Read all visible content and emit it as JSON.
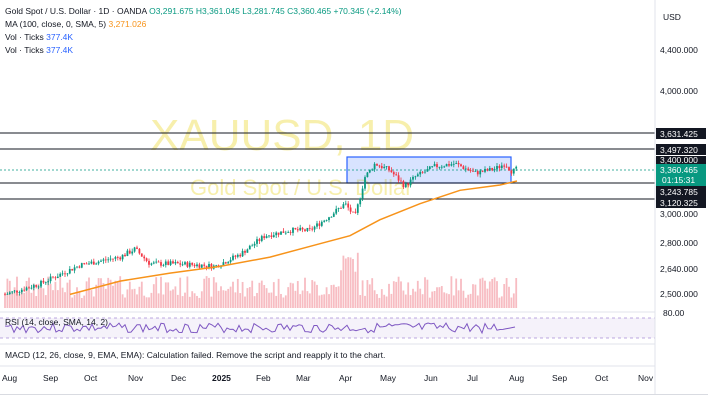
{
  "legend": {
    "symbol_line": "Gold Spot / U.S. Dollar · 1D · OANDA",
    "open": "O3,291.675",
    "high": "H3,361.045",
    "low": "L3,281.745",
    "close": "C3,360.465",
    "change": "+70.345 (+2.14%)",
    "ma_label": "MA (100, close, 0, SMA, 5)",
    "ma_value": "3,271.026",
    "vol1_label": "Vol · Ticks",
    "vol1_value": "377.4K",
    "vol2_label": "Vol · Ticks",
    "vol2_value": "377.4K"
  },
  "watermark": {
    "symbol": "XAUUSD, 1D",
    "name": "Gold Spot / U.S. Dollar"
  },
  "price_axis": {
    "currency": "USD",
    "ticks": [
      "4,400.000",
      "4,000.000",
      "3,000.000",
      "2,800.000",
      "2,640.000",
      "2,500.000"
    ],
    "rsi_tick": "80.00"
  },
  "levels": {
    "l1": "3,631.425",
    "l2": "3,497.320",
    "l3": "3,400.000",
    "current": "3,360.465",
    "countdown": "01:15:31",
    "l4": "3,243.785",
    "l5": "3,120.325"
  },
  "time_axis": [
    "Aug",
    "Sep",
    "Oct",
    "Nov",
    "Dec",
    "2025",
    "Feb",
    "Mar",
    "Apr",
    "May",
    "Jun",
    "Jul",
    "Aug",
    "Sep",
    "Oct",
    "Nov"
  ],
  "rsi_label": "RSI (14, close, SMA, 14, 2)",
  "macd_label": "MACD (12, 26, close, 9, EMA, EMA): Calculation failed. Remove the script and reapply it to the chart.",
  "colors": {
    "up": "#089981",
    "down": "#f23645",
    "ma": "#f7931a",
    "level": "#131722",
    "zone_fill": "#2962ff",
    "rsi": "#7e57c2",
    "current_badge": "#089981"
  },
  "chart_data": {
    "type": "candlestick",
    "series": [
      {
        "name": "MA (100, close, 0, SMA, 5)",
        "kind": "line"
      },
      {
        "name": "Vol · Ticks",
        "kind": "bar"
      }
    ],
    "horizontal_levels": [
      3631.425,
      3497.32,
      3400.0,
      3243.785,
      3120.325
    ],
    "last_close": 3360.465,
    "y_ticks": [
      4400,
      4000,
      3000,
      2800,
      2640,
      2500
    ],
    "x_ticks": [
      "Aug",
      "Sep",
      "Oct",
      "Nov",
      "Dec",
      "2025",
      "Feb",
      "Mar",
      "Apr",
      "May",
      "Jun",
      "Jul",
      "Aug",
      "Sep",
      "Oct",
      "Nov"
    ],
    "rsi_ticks": [
      80
    ]
  }
}
